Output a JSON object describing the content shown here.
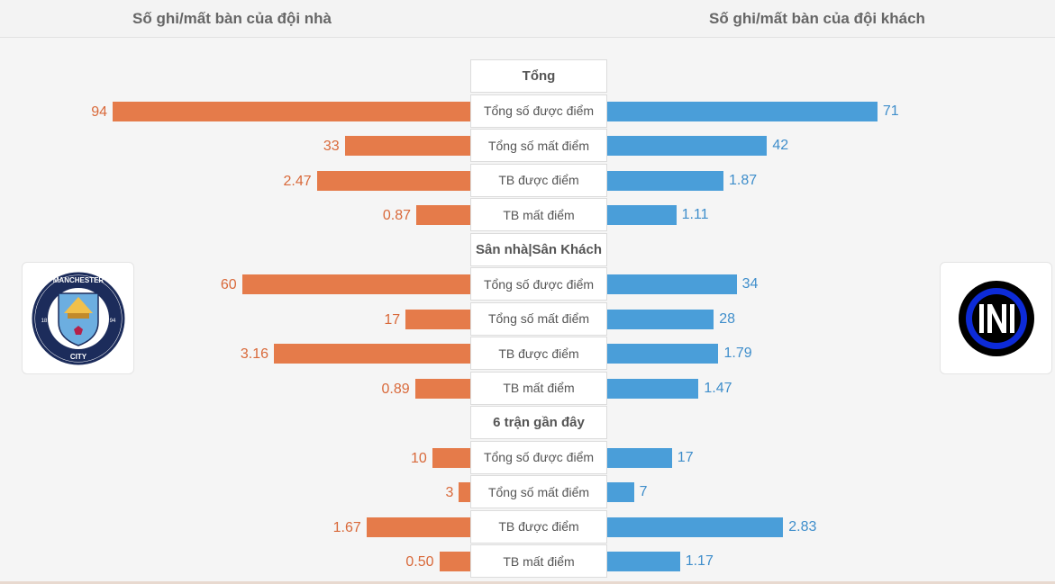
{
  "header": {
    "home_title": "Số ghi/mất bàn của đội nhà",
    "away_title": "Số ghi/mất bàn của đội khách"
  },
  "teams": {
    "home": {
      "logo_text_top": "MANCHESTER",
      "logo_text_bottom": "CITY",
      "logo_year_left": "18",
      "logo_year_right": "94"
    },
    "away": {
      "logo_text": "IM"
    }
  },
  "colors": {
    "home_bar": "#e57b4a",
    "away_bar": "#4a9ed9",
    "home_text": "#d9693a",
    "away_text": "#3f8ecb"
  },
  "chart_data": {
    "type": "bar",
    "orientation": "horizontal-diverging",
    "sections": [
      {
        "title": "Tổng",
        "rows": [
          {
            "label": "Tổng số được điểm",
            "home": 94,
            "away": 71,
            "home_text": "94",
            "away_text": "71"
          },
          {
            "label": "Tổng số mất điểm",
            "home": 33,
            "away": 42,
            "home_text": "33",
            "away_text": "42"
          },
          {
            "label": "TB được điểm",
            "home": 2.47,
            "away": 1.87,
            "home_text": "2.47",
            "away_text": "1.87"
          },
          {
            "label": "TB mất điểm",
            "home": 0.87,
            "away": 1.11,
            "home_text": "0.87",
            "away_text": "1.11"
          }
        ]
      },
      {
        "title": "Sân nhà|Sân Khách",
        "rows": [
          {
            "label": "Tổng số được điểm",
            "home": 60,
            "away": 34,
            "home_text": "60",
            "away_text": "34"
          },
          {
            "label": "Tổng số mất điểm",
            "home": 17,
            "away": 28,
            "home_text": "17",
            "away_text": "28"
          },
          {
            "label": "TB được điểm",
            "home": 3.16,
            "away": 1.79,
            "home_text": "3.16",
            "away_text": "1.79"
          },
          {
            "label": "TB mất điểm",
            "home": 0.89,
            "away": 1.47,
            "home_text": "0.89",
            "away_text": "1.47"
          }
        ]
      },
      {
        "title": "6 trận gần đây",
        "rows": [
          {
            "label": "Tổng số được điểm",
            "home": 10,
            "away": 17,
            "home_text": "10",
            "away_text": "17"
          },
          {
            "label": "Tổng số mất điểm",
            "home": 3,
            "away": 7,
            "home_text": "3",
            "away_text": "7"
          },
          {
            "label": "TB được điểm",
            "home": 1.67,
            "away": 2.83,
            "home_text": "1.67",
            "away_text": "2.83"
          },
          {
            "label": "TB mất điểm",
            "home": 0.5,
            "away": 1.17,
            "home_text": "0.50",
            "away_text": "1.17"
          }
        ]
      }
    ]
  }
}
